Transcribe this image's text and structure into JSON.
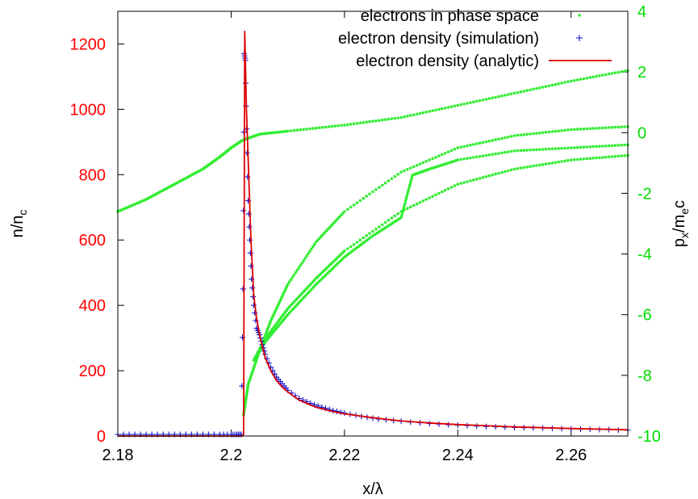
{
  "chart_data": {
    "type": "scatter",
    "title": "",
    "xlabel": "x/λ",
    "ylabel_left": {
      "base": "n/n",
      "sub": "c"
    },
    "ylabel_right": {
      "p": "p",
      "psub": "x",
      "mid": "/m",
      "msub": "e",
      "tail": "c"
    },
    "xlim": [
      2.18,
      2.27
    ],
    "ylim_left": [
      0,
      1300
    ],
    "ylim_right": [
      -10,
      4
    ],
    "x_ticks": [
      "2.18",
      "2.2",
      "2.22",
      "2.24",
      "2.26"
    ],
    "x_tick_values": [
      2.18,
      2.2,
      2.22,
      2.24,
      2.26
    ],
    "y_left_ticks": [
      "0",
      "200",
      "400",
      "600",
      "800",
      "1000",
      "1200"
    ],
    "y_left_tick_values": [
      0,
      200,
      400,
      600,
      800,
      1000,
      1200
    ],
    "y_right_ticks": [
      "-10",
      "-8",
      "-6",
      "-4",
      "-2",
      "0",
      "2",
      "4"
    ],
    "y_right_tick_values": [
      -10,
      -8,
      -6,
      -4,
      -2,
      0,
      2,
      4
    ],
    "grid": false,
    "legend_position": "top-right",
    "colors": {
      "left_axis": "#ff0000",
      "right_axis": "#00dd00",
      "phase": "#33ee33",
      "simulation": "#0000cc",
      "analytic": "#dd0000",
      "frame": "#000000"
    },
    "series": [
      {
        "name": "electrons in phase space",
        "axis": "right",
        "style": "dots",
        "branches": [
          {
            "x": [
              2.18,
              2.185,
              2.19,
              2.195,
              2.198,
              2.2,
              2.202,
              2.205,
              2.21,
              2.22,
              2.23,
              2.24,
              2.25,
              2.26,
              2.27
            ],
            "y": [
              -2.6,
              -2.2,
              -1.7,
              -1.2,
              -0.8,
              -0.5,
              -0.25,
              -0.05,
              0.05,
              0.25,
              0.5,
              0.9,
              1.3,
              1.7,
              2.05
            ]
          },
          {
            "x": [
              2.2022,
              2.203,
              2.205,
              2.207,
              2.21,
              2.215,
              2.22,
              2.23,
              2.24,
              2.25,
              2.26,
              2.27
            ],
            "y": [
              -9.3,
              -8.3,
              -7.2,
              -6.2,
              -5.0,
              -3.6,
              -2.6,
              -1.3,
              -0.5,
              -0.1,
              0.1,
              0.2
            ]
          },
          {
            "x": [
              2.204,
              2.206,
              2.21,
              2.215,
              2.22,
              2.23,
              2.24,
              2.25,
              2.26,
              2.27
            ],
            "y": [
              -7.5,
              -6.8,
              -5.8,
              -4.8,
              -3.9,
              -2.6,
              -1.7,
              -1.2,
              -0.9,
              -0.75
            ]
          },
          {
            "x": [
              2.204,
              2.206,
              2.21,
              2.215,
              2.22,
              2.225,
              2.23,
              2.232,
              2.235,
              2.24,
              2.25,
              2.26,
              2.27
            ],
            "y": [
              -7.5,
              -6.9,
              -6.0,
              -5.0,
              -4.1,
              -3.4,
              -2.8,
              -1.4,
              -1.2,
              -0.9,
              -0.6,
              -0.5,
              -0.4
            ]
          }
        ]
      },
      {
        "name": "electron density (simulation)",
        "axis": "left",
        "style": "plus",
        "x": [
          2.18,
          2.183,
          2.186,
          2.189,
          2.192,
          2.195,
          2.198,
          2.2,
          2.201,
          2.2018,
          2.2021,
          2.2023,
          2.2025,
          2.2027,
          2.203,
          2.2033,
          2.2036,
          2.204,
          2.2045,
          2.205,
          2.2055,
          2.206,
          2.207,
          2.208,
          2.209,
          2.21,
          2.212,
          2.214,
          2.216,
          2.218,
          2.22,
          2.223,
          2.226,
          2.23,
          2.235,
          2.24,
          2.245,
          2.25,
          2.255,
          2.26,
          2.265,
          2.27
        ],
        "y": [
          5,
          5,
          5,
          5,
          5,
          5,
          5,
          5,
          5,
          5,
          450,
          1170,
          1150,
          940,
          720,
          600,
          480,
          400,
          330,
          310,
          280,
          250,
          210,
          180,
          160,
          140,
          115,
          100,
          88,
          78,
          70,
          60,
          52,
          45,
          38,
          33,
          29,
          26,
          24,
          22,
          20,
          18
        ]
      },
      {
        "name": "electron density (analytic)",
        "axis": "left",
        "style": "line",
        "x": [
          2.18,
          2.19,
          2.2,
          2.202,
          2.2022,
          2.2024,
          2.2027,
          2.203,
          2.2035,
          2.204,
          2.2045,
          2.205,
          2.206,
          2.207,
          2.208,
          2.209,
          2.21,
          2.212,
          2.215,
          2.218,
          2.22,
          2.225,
          2.23,
          2.235,
          2.24,
          2.25,
          2.26,
          2.27
        ],
        "y": [
          0,
          0,
          0,
          0,
          5,
          1240,
          1000,
          850,
          600,
          430,
          360,
          310,
          240,
          200,
          170,
          150,
          135,
          110,
          88,
          75,
          68,
          56,
          46,
          40,
          35,
          28,
          23,
          19
        ]
      }
    ]
  }
}
